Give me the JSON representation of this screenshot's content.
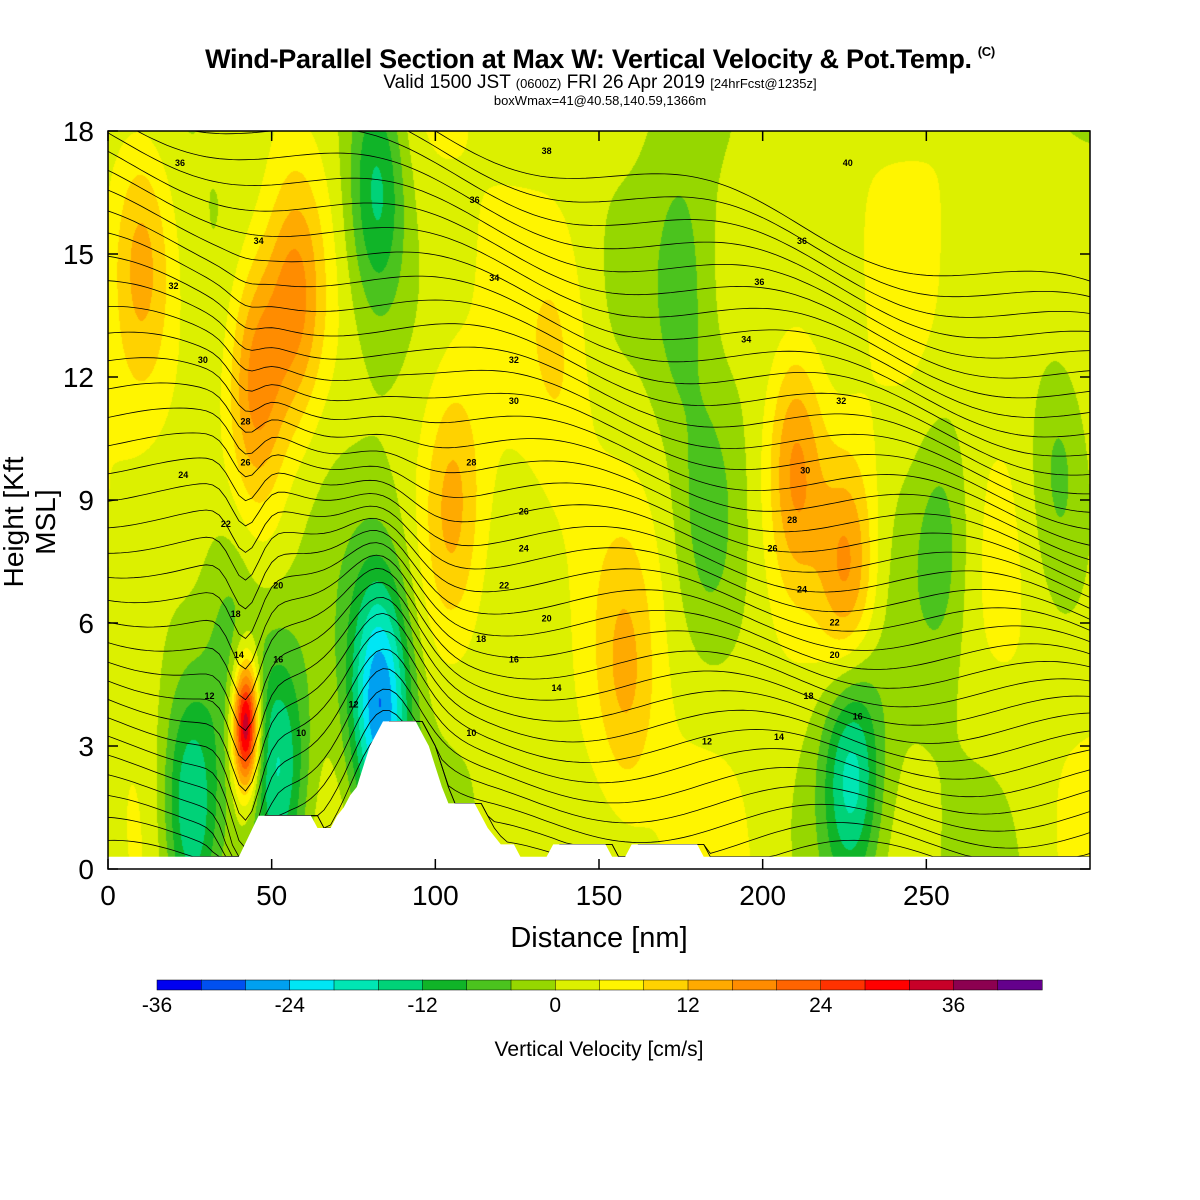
{
  "header": {
    "title": "Wind-Parallel Section at Max W: Vertical Velocity & Pot.Temp.",
    "title_mark": "(C)",
    "valid_prefix": "Valid 1500 JST",
    "valid_utc": "(0600Z)",
    "valid_date": "FRI 26 Apr 2019",
    "forecast": "[24hrFcst@1235z]",
    "box_info": "boxWmax=41@40.58,140.59,1366m"
  },
  "chart_data": {
    "type": "heatmap",
    "xlabel": "Distance [nm]",
    "ylabel": "Height [Kft MSL]",
    "xlim": [
      0,
      300
    ],
    "ylim": [
      0,
      18
    ],
    "x_ticks": [
      0,
      50,
      100,
      150,
      200,
      250
    ],
    "y_ticks": [
      0,
      3,
      6,
      9,
      12,
      15,
      18
    ],
    "colorbar": {
      "label": "Vertical Velocity [cm/s]",
      "range": [
        -36,
        42
      ],
      "step": 4,
      "tick_values": [
        -36,
        -24,
        -12,
        0,
        12,
        24,
        36
      ],
      "tick_labels": [
        "-36",
        "-24",
        "-12",
        "0",
        "12",
        "24",
        "36"
      ],
      "colors": [
        "#0000f0",
        "#0050f0",
        "#00a0f0",
        "#00e6f5",
        "#00e6b4",
        "#00d278",
        "#10b428",
        "#4bc31e",
        "#96d700",
        "#dcf000",
        "#fff500",
        "#ffd200",
        "#ffaa00",
        "#ff8c00",
        "#ff6400",
        "#ff3200",
        "#ff0000",
        "#c80028",
        "#8c0050",
        "#64008c"
      ]
    },
    "terrain_nm_kft": [
      [
        0,
        0.3
      ],
      [
        30,
        0.3
      ],
      [
        40,
        0.3
      ],
      [
        46,
        1.3
      ],
      [
        62,
        1.3
      ],
      [
        64,
        1.0
      ],
      [
        68,
        1.0
      ],
      [
        70,
        1.3
      ],
      [
        72,
        1.5
      ],
      [
        74,
        1.8
      ],
      [
        76,
        2.0
      ],
      [
        78,
        2.5
      ],
      [
        80,
        3.0
      ],
      [
        82,
        3.3
      ],
      [
        84,
        3.6
      ],
      [
        94,
        3.6
      ],
      [
        96,
        3.3
      ],
      [
        98,
        3.0
      ],
      [
        100,
        2.5
      ],
      [
        102,
        2.0
      ],
      [
        104,
        1.6
      ],
      [
        112,
        1.6
      ],
      [
        114,
        1.3
      ],
      [
        116,
        1.0
      ],
      [
        118,
        0.8
      ],
      [
        120,
        0.6
      ],
      [
        124,
        0.6
      ],
      [
        126,
        0.3
      ],
      [
        134,
        0.3
      ],
      [
        136,
        0.6
      ],
      [
        152,
        0.6
      ],
      [
        154,
        0.3
      ],
      [
        158,
        0.3
      ],
      [
        160,
        0.6
      ],
      [
        180,
        0.6
      ],
      [
        182,
        0.3
      ],
      [
        300,
        0.3
      ]
    ],
    "w_features": [
      {
        "x": 42,
        "z": 3.5,
        "w": 41
      },
      {
        "x": 45,
        "z": 12,
        "w": 18
      },
      {
        "x": 57,
        "z": 14,
        "w": 16
      },
      {
        "x": 10,
        "z": 15,
        "w": 10
      },
      {
        "x": 25,
        "z": 1.5,
        "w": -20
      },
      {
        "x": 38,
        "z": 5.5,
        "w": -10
      },
      {
        "x": 52,
        "z": 2.5,
        "w": -18
      },
      {
        "x": 83,
        "z": 4.0,
        "w": -28
      },
      {
        "x": 82,
        "z": 16.5,
        "w": -16
      },
      {
        "x": 105,
        "z": 9,
        "w": 10
      },
      {
        "x": 158,
        "z": 4.5,
        "w": 8
      },
      {
        "x": 210,
        "z": 10,
        "w": 16
      },
      {
        "x": 226,
        "z": 7,
        "w": 18
      },
      {
        "x": 227,
        "z": 2.5,
        "w": -20
      },
      {
        "x": 255,
        "z": 8,
        "w": -8
      },
      {
        "x": 290,
        "z": 10,
        "w": -8
      },
      {
        "x": 175,
        "z": 14,
        "w": -8
      },
      {
        "x": 138,
        "z": 12.5,
        "w": 4
      },
      {
        "x": 183,
        "z": 9,
        "w": -6
      }
    ],
    "theta_levels": [
      6,
      7,
      8,
      9,
      10,
      11,
      12,
      13,
      14,
      15,
      16,
      17,
      18,
      19,
      20,
      21,
      22,
      23,
      24,
      25,
      26,
      27,
      28,
      29,
      30,
      31,
      32,
      33,
      34,
      35,
      36,
      37,
      38,
      39,
      40,
      41
    ],
    "theta_labels": [
      {
        "text": "36",
        "x": 22,
        "z": 17.2
      },
      {
        "text": "36",
        "x": 112,
        "z": 16.3
      },
      {
        "text": "38",
        "x": 134,
        "z": 17.5
      },
      {
        "text": "40",
        "x": 226,
        "z": 17.2
      },
      {
        "text": "34",
        "x": 46,
        "z": 15.3
      },
      {
        "text": "34",
        "x": 118,
        "z": 14.4
      },
      {
        "text": "36",
        "x": 212,
        "z": 15.3
      },
      {
        "text": "36",
        "x": 199,
        "z": 14.3
      },
      {
        "text": "32",
        "x": 20,
        "z": 14.2
      },
      {
        "text": "34",
        "x": 195,
        "z": 12.9
      },
      {
        "text": "30",
        "x": 29,
        "z": 12.4
      },
      {
        "text": "32",
        "x": 124,
        "z": 12.4
      },
      {
        "text": "30",
        "x": 124,
        "z": 11.4
      },
      {
        "text": "32",
        "x": 224,
        "z": 11.4
      },
      {
        "text": "28",
        "x": 42,
        "z": 10.9
      },
      {
        "text": "26",
        "x": 42,
        "z": 9.9
      },
      {
        "text": "28",
        "x": 111,
        "z": 9.9
      },
      {
        "text": "30",
        "x": 213,
        "z": 9.7
      },
      {
        "text": "24",
        "x": 23,
        "z": 9.6
      },
      {
        "text": "26",
        "x": 127,
        "z": 8.7
      },
      {
        "text": "28",
        "x": 209,
        "z": 8.5
      },
      {
        "text": "22",
        "x": 36,
        "z": 8.4
      },
      {
        "text": "24",
        "x": 127,
        "z": 7.8
      },
      {
        "text": "26",
        "x": 203,
        "z": 7.8
      },
      {
        "text": "20",
        "x": 52,
        "z": 6.9
      },
      {
        "text": "22",
        "x": 121,
        "z": 6.9
      },
      {
        "text": "24",
        "x": 212,
        "z": 6.8
      },
      {
        "text": "18",
        "x": 39,
        "z": 6.2
      },
      {
        "text": "20",
        "x": 134,
        "z": 6.1
      },
      {
        "text": "22",
        "x": 222,
        "z": 6.0
      },
      {
        "text": "18",
        "x": 114,
        "z": 5.6
      },
      {
        "text": "14",
        "x": 40,
        "z": 5.2
      },
      {
        "text": "16",
        "x": 52,
        "z": 5.1
      },
      {
        "text": "16",
        "x": 124,
        "z": 5.1
      },
      {
        "text": "20",
        "x": 222,
        "z": 5.2
      },
      {
        "text": "12",
        "x": 31,
        "z": 4.2
      },
      {
        "text": "12",
        "x": 75,
        "z": 4.0
      },
      {
        "text": "14",
        "x": 137,
        "z": 4.4
      },
      {
        "text": "18",
        "x": 214,
        "z": 4.2
      },
      {
        "text": "16",
        "x": 229,
        "z": 3.7
      },
      {
        "text": "10",
        "x": 59,
        "z": 3.3
      },
      {
        "text": "10",
        "x": 111,
        "z": 3.3
      },
      {
        "text": "12",
        "x": 183,
        "z": 3.1
      },
      {
        "text": "14",
        "x": 205,
        "z": 3.2
      }
    ]
  }
}
